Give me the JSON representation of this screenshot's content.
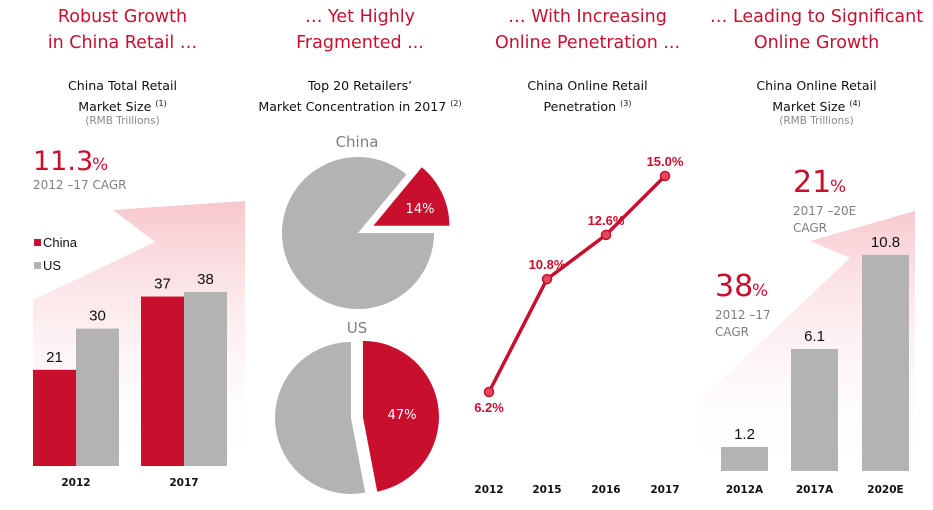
{
  "colors": {
    "accent": "#c8102e",
    "gray_bar": "#b3b3b4",
    "arrow_fill": "#f7c6cc",
    "subtext": "#7f7f7f"
  },
  "panels": [
    {
      "headline_line1": "Robust Growth",
      "headline_line2": "in China Retail …",
      "subtitle_line1": "China Total Retail",
      "subtitle_line2": "Market Size",
      "footnote": "(1)",
      "unit": "(RMB Trillions)",
      "cagr_value": "11.3",
      "cagr_pct": "%",
      "cagr_label": "2012 –17 CAGR"
    },
    {
      "headline_line1": "… Yet Highly",
      "headline_line2": "Fragmented ...",
      "subtitle_line1": "Top 20 Retailers’",
      "subtitle_line2": "Market Concentration in 2017",
      "footnote": "(2)"
    },
    {
      "headline_line1": "… With Increasing",
      "headline_line2": "Online Penetration ...",
      "subtitle_line1": "China Online Retail",
      "subtitle_line2": "Penetration",
      "footnote": "(3)"
    },
    {
      "headline_line1": "… Leading to Significant",
      "headline_line2": "Online Growth",
      "subtitle_line1": "China Online Retail",
      "subtitle_line2": "Market Size",
      "footnote": "(4)",
      "unit": "(RMB Trillions)",
      "cagr1_value": "38",
      "cagr1_pct": "%",
      "cagr1_label_line1": "2012 –17",
      "cagr1_label_line2": "CAGR",
      "cagr2_value": "21",
      "cagr2_pct": "%",
      "cagr2_label_line1": "2017 –20E",
      "cagr2_label_line2": "CAGR"
    }
  ],
  "chart_data": [
    {
      "type": "bar",
      "title": "China Total Retail Market Size (RMB Trillions)",
      "categories": [
        "2012",
        "2017"
      ],
      "series": [
        {
          "name": "China",
          "values": [
            21,
            37
          ],
          "labels": [
            "21",
            "37"
          ]
        },
        {
          "name": "US",
          "values": [
            30,
            38
          ],
          "labels": [
            "30",
            "38"
          ]
        }
      ],
      "legend": [
        "China",
        "US"
      ],
      "legend_position": "left",
      "ylim": [
        0,
        40
      ],
      "annotation": "11.3% 2012 –17 CAGR"
    },
    {
      "type": "pie",
      "title": "Top 20 Retailers’ Market Concentration in 2017",
      "pies": [
        {
          "name": "China",
          "slices": [
            {
              "label": "Top 20",
              "value": 14,
              "text": "14%"
            },
            {
              "label": "Other",
              "value": 86
            }
          ]
        },
        {
          "name": "US",
          "slices": [
            {
              "label": "Top 20",
              "value": 47,
              "text": "47%"
            },
            {
              "label": "Other",
              "value": 53
            }
          ]
        }
      ]
    },
    {
      "type": "line",
      "title": "China Online Retail Penetration",
      "x": [
        "2012",
        "2015",
        "2016",
        "2017"
      ],
      "values": [
        6.2,
        10.8,
        12.6,
        15.0
      ],
      "labels": [
        "6.2%",
        "10.8%",
        "12.6%",
        "15.0%"
      ],
      "ylim": [
        0,
        16
      ]
    },
    {
      "type": "bar",
      "title": "China Online Retail Market Size (RMB Trillions)",
      "categories": [
        "2012A",
        "2017A",
        "2020E"
      ],
      "values": [
        1.2,
        6.1,
        10.8
      ],
      "labels": [
        "1.2",
        "6.1",
        "10.8"
      ],
      "ylim": [
        0,
        11
      ],
      "annotations": [
        "38% 2012 –17 CAGR",
        "21% 2017 –20E CAGR"
      ]
    }
  ]
}
